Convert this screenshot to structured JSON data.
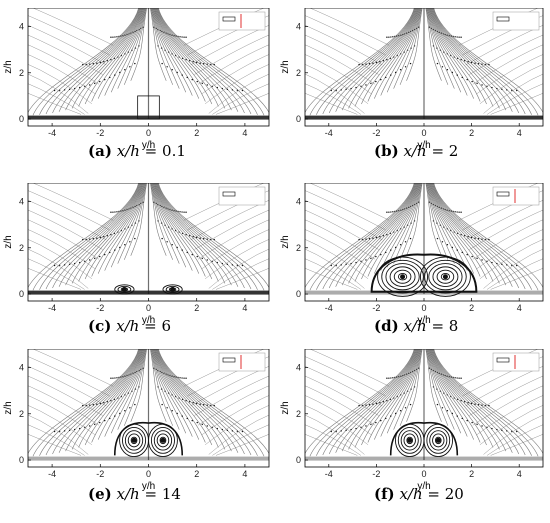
{
  "figure": {
    "panels": [
      {
        "id": "a",
        "letter": "(a)",
        "var": "x/h",
        "eq": "=",
        "value": "0.1",
        "xlabel": "y/h",
        "ylabel": "z/h",
        "xticks": [
          "-4",
          "-2",
          "0",
          "2",
          "4"
        ],
        "yticks": [
          "0",
          "2",
          "4"
        ],
        "legend_marker": "red-line",
        "vortex": "none"
      },
      {
        "id": "b",
        "letter": "(b)",
        "var": "x/h",
        "eq": "=",
        "value": "2",
        "xlabel": "y/h",
        "ylabel": "z/h",
        "xticks": [
          "-4",
          "-2",
          "0",
          "2",
          "4"
        ],
        "yticks": [
          "0",
          "2",
          "4"
        ],
        "legend_marker": "none",
        "vortex": "none"
      },
      {
        "id": "c",
        "letter": "(c)",
        "var": "x/h",
        "eq": "=",
        "value": "6",
        "xlabel": "y/h",
        "ylabel": "z/h",
        "xticks": [
          "-4",
          "-2",
          "0",
          "2",
          "4"
        ],
        "yticks": [
          "0",
          "2",
          "4"
        ],
        "legend_marker": "none",
        "vortex": "small"
      },
      {
        "id": "d",
        "letter": "(d)",
        "var": "x/h",
        "eq": "=",
        "value": "8",
        "xlabel": "y/h",
        "ylabel": "z/h",
        "xticks": [
          "-4",
          "-2",
          "0",
          "2",
          "4"
        ],
        "yticks": [
          "0",
          "2",
          "4"
        ],
        "legend_marker": "red-line",
        "vortex": "large"
      },
      {
        "id": "e",
        "letter": "(e)",
        "var": "x/h",
        "eq": "=",
        "value": "14",
        "xlabel": "y/h",
        "ylabel": "z/h",
        "xticks": [
          "-4",
          "-2",
          "0",
          "2",
          "4"
        ],
        "yticks": [
          "0",
          "2",
          "4"
        ],
        "legend_marker": "red-line",
        "vortex": "medium"
      },
      {
        "id": "f",
        "letter": "(f)",
        "var": "x/h",
        "eq": "=",
        "value": "20",
        "xlabel": "y/h",
        "ylabel": "z/h",
        "xticks": [
          "-4",
          "-2",
          "0",
          "2",
          "4"
        ],
        "yticks": [
          "0",
          "2",
          "4"
        ],
        "legend_marker": "red-line",
        "vortex": "medium"
      }
    ],
    "colors": {
      "stream": "#6a6a6a",
      "dark": "#111111",
      "legend_red": "#e03030",
      "axis": "#000000"
    }
  }
}
